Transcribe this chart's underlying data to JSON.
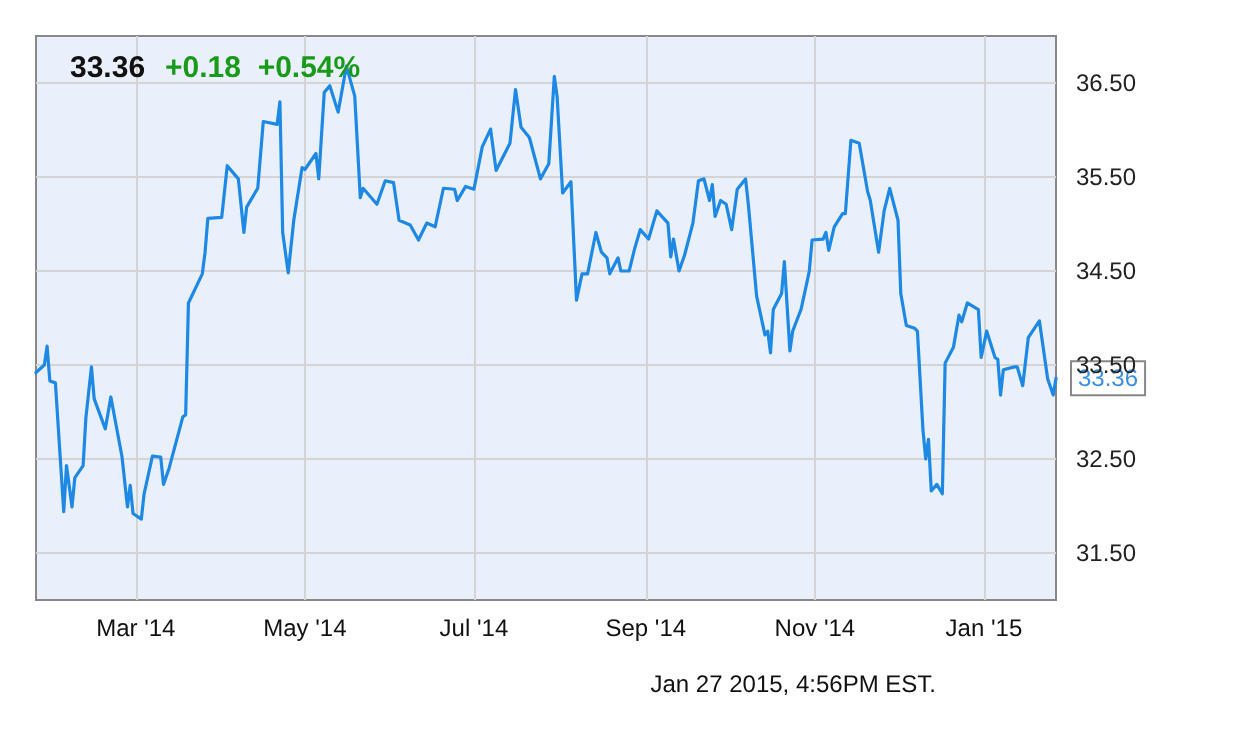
{
  "chart_data": {
    "type": "line",
    "title": "33.36",
    "subtitle": "+0.18  +0.54%",
    "x": [
      "2014-01-24",
      "2014-01-27",
      "2014-01-28",
      "2014-01-29",
      "2014-01-31",
      "2014-02-03",
      "2014-02-04",
      "2014-02-06",
      "2014-02-07",
      "2014-02-10",
      "2014-02-11",
      "2014-02-13",
      "2014-02-14",
      "2014-02-18",
      "2014-02-20",
      "2014-02-24",
      "2014-02-26",
      "2014-02-27",
      "2014-02-28",
      "2014-03-03",
      "2014-03-04",
      "2014-03-07",
      "2014-03-10",
      "2014-03-11",
      "2014-03-13",
      "2014-03-18",
      "2014-03-19",
      "2014-03-20",
      "2014-03-25",
      "2014-03-26",
      "2014-03-27",
      "2014-04-01",
      "2014-04-03",
      "2014-04-07",
      "2014-04-09",
      "2014-04-10",
      "2014-04-14",
      "2014-04-16",
      "2014-04-21",
      "2014-04-22",
      "2014-04-23",
      "2014-04-25",
      "2014-04-27",
      "2014-04-30",
      "2014-05-01",
      "2014-05-05",
      "2014-05-06",
      "2014-05-08",
      "2014-05-10",
      "2014-05-13",
      "2014-05-16",
      "2014-05-19",
      "2014-05-21",
      "2014-05-22",
      "2014-05-27",
      "2014-05-30",
      "2014-06-02",
      "2014-06-04",
      "2014-06-08",
      "2014-06-11",
      "2014-06-14",
      "2014-06-17",
      "2014-06-20",
      "2014-06-24",
      "2014-06-25",
      "2014-06-28",
      "2014-07-01",
      "2014-07-04",
      "2014-07-07",
      "2014-07-09",
      "2014-07-14",
      "2014-07-16",
      "2014-07-18",
      "2014-07-21",
      "2014-07-25",
      "2014-07-28",
      "2014-07-30",
      "2014-07-31",
      "2014-08-02",
      "2014-08-05",
      "2014-08-07",
      "2014-08-09",
      "2014-08-11",
      "2014-08-14",
      "2014-08-16",
      "2014-08-18",
      "2014-08-19",
      "2014-08-22",
      "2014-08-23",
      "2014-08-26",
      "2014-08-28",
      "2014-08-30",
      "2014-09-02",
      "2014-09-05",
      "2014-09-09",
      "2014-09-10",
      "2014-09-11",
      "2014-09-13",
      "2014-09-15",
      "2014-09-18",
      "2014-09-20",
      "2014-09-22",
      "2014-09-24",
      "2014-09-25",
      "2014-09-26",
      "2014-09-28",
      "2014-09-30",
      "2014-10-02",
      "2014-10-04",
      "2014-10-07",
      "2014-10-08",
      "2014-10-11",
      "2014-10-14",
      "2014-10-15",
      "2014-10-16",
      "2014-10-17",
      "2014-10-20",
      "2014-10-21",
      "2014-10-23",
      "2014-10-24",
      "2014-10-27",
      "2014-10-29",
      "2014-10-30",
      "2014-10-31",
      "2014-11-04",
      "2014-11-05",
      "2014-11-06",
      "2014-11-08",
      "2014-11-11",
      "2014-11-12",
      "2014-11-14",
      "2014-11-17",
      "2014-11-20",
      "2014-11-21",
      "2014-11-24",
      "2014-11-26",
      "2014-11-28",
      "2014-12-01",
      "2014-12-02",
      "2014-12-04",
      "2014-12-07",
      "2014-12-08",
      "2014-12-10",
      "2014-12-11",
      "2014-12-12",
      "2014-12-13",
      "2014-12-15",
      "2014-12-17",
      "2014-12-18",
      "2014-12-21",
      "2014-12-23",
      "2014-12-24",
      "2014-12-26",
      "2014-12-30",
      "2014-12-31",
      "2015-01-02",
      "2015-01-05",
      "2015-01-06",
      "2015-01-07",
      "2015-01-08",
      "2015-01-12",
      "2015-01-13",
      "2015-01-15",
      "2015-01-17",
      "2015-01-21",
      "2015-01-24",
      "2015-01-26",
      "2015-01-27"
    ],
    "values": [
      33.42,
      33.5,
      33.7,
      33.33,
      33.31,
      31.94,
      32.43,
      31.99,
      32.3,
      32.43,
      32.94,
      33.48,
      33.14,
      32.82,
      33.16,
      32.53,
      31.99,
      32.22,
      31.92,
      31.86,
      32.13,
      32.53,
      32.52,
      32.23,
      32.4,
      32.95,
      32.97,
      34.16,
      34.47,
      34.7,
      35.06,
      35.07,
      35.62,
      35.48,
      34.91,
      35.18,
      35.38,
      36.09,
      36.06,
      36.3,
      34.91,
      34.48,
      35.04,
      35.6,
      35.58,
      35.75,
      35.48,
      36.4,
      36.47,
      36.19,
      36.68,
      36.36,
      35.28,
      35.38,
      35.21,
      35.46,
      35.44,
      35.04,
      34.99,
      34.83,
      35.01,
      34.97,
      35.38,
      35.37,
      35.25,
      35.4,
      35.37,
      35.82,
      36.01,
      35.57,
      35.86,
      36.43,
      36.03,
      35.92,
      35.48,
      35.64,
      36.57,
      36.36,
      35.33,
      35.45,
      34.19,
      34.47,
      34.47,
      34.91,
      34.7,
      34.64,
      34.47,
      34.64,
      34.5,
      34.5,
      34.74,
      34.94,
      34.84,
      35.14,
      35.01,
      34.65,
      34.84,
      34.5,
      34.67,
      35.01,
      35.46,
      35.48,
      35.25,
      35.42,
      35.08,
      35.25,
      35.21,
      34.94,
      35.37,
      35.48,
      35.21,
      34.23,
      33.82,
      33.86,
      33.63,
      34.09,
      34.26,
      34.6,
      33.65,
      33.86,
      34.09,
      34.36,
      34.5,
      34.83,
      34.84,
      34.91,
      34.72,
      34.97,
      35.11,
      35.11,
      35.89,
      35.86,
      35.35,
      35.25,
      34.7,
      35.14,
      35.38,
      35.04,
      34.26,
      33.92,
      33.89,
      33.86,
      32.81,
      32.5,
      32.71,
      32.16,
      32.23,
      32.13,
      33.52,
      33.69,
      34.03,
      33.96,
      34.16,
      34.09,
      33.58,
      33.86,
      33.58,
      33.56,
      33.18,
      33.45,
      33.48,
      33.48,
      33.28,
      33.79,
      33.97,
      33.35,
      33.18,
      33.36
    ],
    "color": "#1e88e5",
    "marker": "none",
    "line_style": "solid",
    "xlim": [
      "2014-01-24",
      "2015-01-27"
    ],
    "xticks": [
      {
        "value": "2014-03-01",
        "label": "Mar '14"
      },
      {
        "value": "2014-05-01",
        "label": "May '14"
      },
      {
        "value": "2014-07-01",
        "label": "Jul '14"
      },
      {
        "value": "2014-09-01",
        "label": "Sep '14"
      },
      {
        "value": "2014-11-01",
        "label": "Nov '14"
      },
      {
        "value": "2015-01-01",
        "label": "Jan '15"
      }
    ],
    "ylim": [
      31,
      37
    ],
    "yticks": [
      {
        "value": 31.5,
        "label": "31.50"
      },
      {
        "value": 32.5,
        "label": "32.50"
      },
      {
        "value": 33.5,
        "label": "33.50"
      },
      {
        "value": 34.5,
        "label": "34.50"
      },
      {
        "value": 35.5,
        "label": "35.50"
      },
      {
        "value": 36.5,
        "label": "36.50"
      }
    ],
    "grid": true,
    "annotations": [
      {
        "text": "33.36",
        "x": "2015-01-27",
        "y": 33.36
      },
      "Jan 27 2015, 4:56PM EST."
    ]
  }
}
